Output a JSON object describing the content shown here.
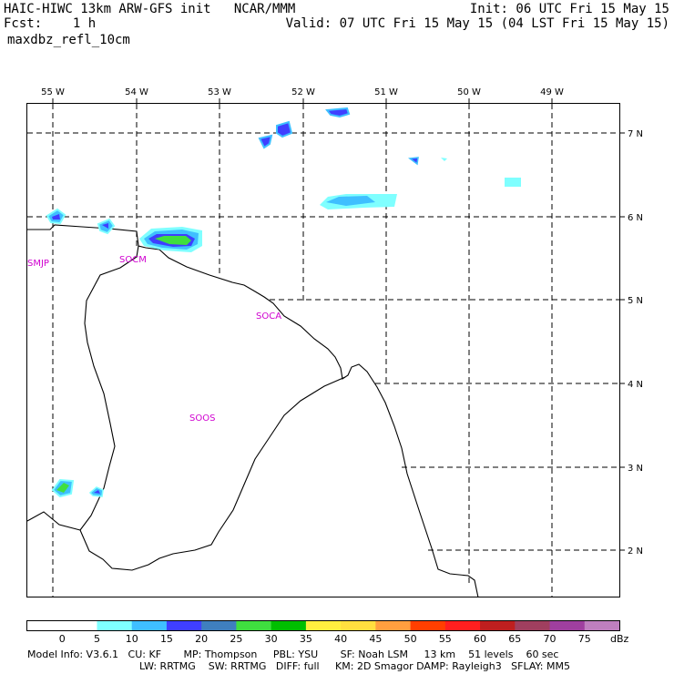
{
  "header": {
    "title_left": "HAIC-HIWC 13km ARW-GFS init   NCAR/MMM",
    "fcst": "Fcst:    1 h",
    "field": "maxdbz_refl_10cm",
    "init": "Init: 06 UTC Fri 15 May 15",
    "valid": "Valid: 07 UTC Fri 15 May 15 (04 LST Fri 15 May 15)"
  },
  "map": {
    "lon_labels": [
      "55 W",
      "54 W",
      "53 W",
      "52 W",
      "51 W",
      "50 W",
      "49 W"
    ],
    "lat_labels": [
      "7 N",
      "6 N",
      "5 N",
      "4 N",
      "3 N",
      "2 N"
    ],
    "stations": [
      "SMJP",
      "SOCM",
      "SOCA",
      "SOOS"
    ]
  },
  "colorbar": {
    "ticks": [
      "0",
      "5",
      "10",
      "15",
      "20",
      "25",
      "30",
      "35",
      "40",
      "45",
      "50",
      "55",
      "60",
      "65",
      "70",
      "75"
    ],
    "unit": "dBz",
    "colors": [
      "#ffffff",
      "#ffffff",
      "#7fffff",
      "#3fbfff",
      "#3f3fff",
      "#3f7fbf",
      "#3fdf3f",
      "#00bf00",
      "#ffef3f",
      "#ffdf3f",
      "#ff9f3f",
      "#ff3f00",
      "#ff1f1f",
      "#bf1f1f",
      "#a03f5f",
      "#9f3f9f",
      "#bf7fbf"
    ]
  },
  "footer": {
    "line1": "Model Info: V3.6.1   CU: KF       MP: Thompson     PBL: YSU       SF: Noah LSM     13 km    51 levels    60 sec",
    "line2": "LW: RRTMG    SW: RRTMG   DIFF: full     KM: 2D Smagor DAMP: Rayleigh3   SFLAY: MM5"
  }
}
